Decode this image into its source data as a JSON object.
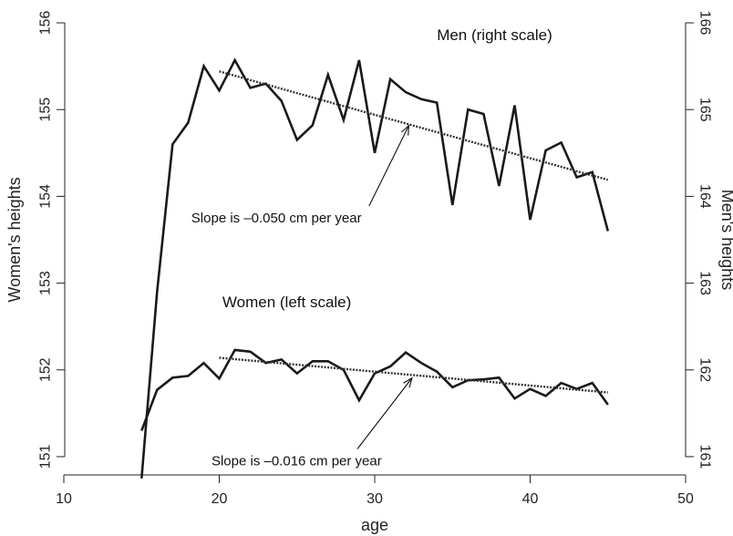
{
  "chart_data": {
    "type": "line",
    "xlabel": "age",
    "ylabel_left": "Women's heights",
    "ylabel_right": "Men's heights",
    "xlim": [
      10,
      50
    ],
    "ylim_left": [
      150.8,
      156.2
    ],
    "ylim_right": [
      160.8,
      166.2
    ],
    "x_ticks": [
      10,
      20,
      30,
      40,
      50
    ],
    "y_left_ticks": [
      151,
      152,
      153,
      154,
      155,
      156
    ],
    "y_right_ticks": [
      161,
      162,
      163,
      164,
      165,
      166
    ],
    "grid": false,
    "series": [
      {
        "name": "Men (right scale)",
        "axis": "right",
        "x": [
          15,
          16,
          17,
          18,
          19,
          20,
          21,
          22,
          23,
          24,
          25,
          26,
          27,
          28,
          29,
          30,
          31,
          32,
          33,
          34,
          35,
          36,
          37,
          38,
          39,
          40,
          41,
          42,
          43,
          44,
          45
        ],
        "y": [
          160.75,
          162.9,
          164.6,
          164.85,
          165.5,
          165.22,
          165.57,
          165.25,
          165.3,
          165.1,
          164.65,
          164.82,
          165.4,
          164.88,
          165.57,
          164.5,
          165.35,
          165.2,
          165.12,
          165.08,
          163.9,
          165.0,
          164.95,
          164.12,
          165.05,
          163.73,
          164.53,
          164.62,
          164.22,
          164.28,
          163.6
        ]
      },
      {
        "name": "Women (left scale)",
        "axis": "left",
        "x": [
          15,
          16,
          17,
          18,
          19,
          20,
          21,
          22,
          23,
          24,
          25,
          26,
          27,
          28,
          29,
          30,
          31,
          32,
          33,
          34,
          35,
          36,
          37,
          38,
          39,
          40,
          41,
          42,
          43,
          44,
          45
        ],
        "y": [
          151.3,
          151.77,
          151.91,
          151.93,
          152.08,
          151.9,
          152.23,
          152.21,
          152.08,
          152.12,
          151.96,
          152.1,
          152.1,
          152.0,
          151.65,
          151.96,
          152.04,
          152.2,
          152.08,
          151.98,
          151.8,
          151.88,
          151.89,
          151.91,
          151.67,
          151.78,
          151.7,
          151.85,
          151.78,
          151.85,
          151.6
        ]
      }
    ],
    "trend_lines": [
      {
        "axis": "right",
        "x": [
          20,
          45
        ],
        "y": [
          165.44,
          164.19
        ]
      },
      {
        "axis": "left",
        "x": [
          20,
          45
        ],
        "y": [
          152.14,
          151.74
        ]
      }
    ],
    "annotations": [
      {
        "text": "Men (right scale)",
        "x": 34,
        "y_right": 165.8
      },
      {
        "text": "Women (left scale)",
        "x": 20.2,
        "y_left": 152.72
      },
      {
        "text": "Slope is –0.050 cm per year",
        "x": 18.2,
        "y_right": 163.7,
        "arrow_to": [
          32.2,
          164.88
        ]
      },
      {
        "text": "Slope is –0.016 cm per year",
        "x": 19.5,
        "y_left": 150.9,
        "arrow_to": [
          32.4,
          151.97
        ]
      }
    ]
  }
}
